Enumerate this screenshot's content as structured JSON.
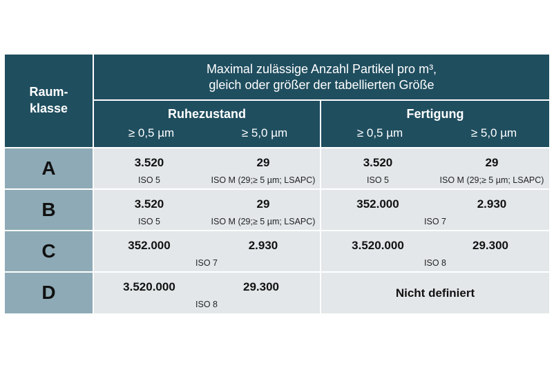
{
  "header": {
    "room_class_line1": "Raum-",
    "room_class_line2": "klasse",
    "title_line1": "Maximal zulässige Anzahl Partikel pro m³,",
    "title_line2": "gleich oder größer der tabellierten Größe",
    "group_rest": "Ruhezustand",
    "group_operation": "Fertigung",
    "size_05": "≥ 0,5 µm",
    "size_50": "≥ 5,0 µm"
  },
  "rows": [
    {
      "class": "A",
      "rest_05": "3.520",
      "rest_50": "29",
      "rest_iso_05": "ISO 5",
      "rest_iso_50": "ISO M (29;≥ 5 µm; LSAPC)",
      "op_05": "3.520",
      "op_50": "29",
      "op_iso_05": "ISO 5",
      "op_iso_50": "ISO M (29;≥ 5 µm; LSAPC)"
    },
    {
      "class": "B",
      "rest_05": "3.520",
      "rest_50": "29",
      "rest_iso_05": "ISO 5",
      "rest_iso_50": "ISO M (29;≥ 5 µm; LSAPC)",
      "op_05": "352.000",
      "op_50": "2.930",
      "op_iso": "ISO 7"
    },
    {
      "class": "C",
      "rest_05": "352.000",
      "rest_50": "2.930",
      "rest_iso": "ISO 7",
      "op_05": "3.520.000",
      "op_50": "29.300",
      "op_iso": "ISO 8"
    },
    {
      "class": "D",
      "rest_05": "3.520.000",
      "rest_50": "29.300",
      "rest_iso": "ISO 8",
      "op_text": "Nicht definiert"
    }
  ],
  "colors": {
    "header_bg": "#1f4e5f",
    "class_bg": "#8eaab6",
    "cell_bg": "#e3e7e9"
  }
}
